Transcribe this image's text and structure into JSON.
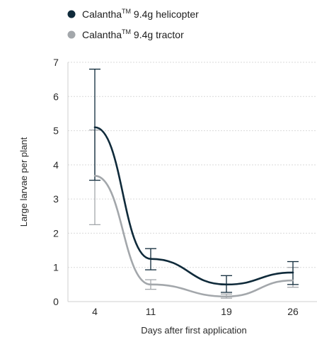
{
  "chart_data": {
    "type": "line",
    "xlabel": "Days after first application",
    "ylabel": "Large larvae per plant",
    "x": [
      4,
      11,
      19,
      26
    ],
    "x_tick_labels": [
      "4",
      "11",
      "19",
      "26"
    ],
    "y_ticks": [
      0,
      1,
      2,
      3,
      4,
      5,
      6,
      7
    ],
    "y_tick_labels": [
      "0",
      "1",
      "2",
      "3",
      "4",
      "5",
      "6",
      "7"
    ],
    "ylim": [
      0,
      7
    ],
    "grid": "horizontal",
    "legend_position": "top-left",
    "series": [
      {
        "name": "Calantha™ 9.4g helicopter",
        "name_main": "Calantha",
        "name_mark": "TM",
        "name_rest": " 9.4g helicopter",
        "color": "#0f2a3a",
        "values": [
          5.1,
          1.25,
          0.5,
          0.85
        ],
        "error_low": [
          3.55,
          0.93,
          0.27,
          0.5
        ],
        "error_high": [
          6.8,
          1.55,
          0.76,
          1.17
        ]
      },
      {
        "name": "Calantha™ 9.4g tractor",
        "name_main": "Calantha",
        "name_mark": "TM",
        "name_rest": " 9.4g tractor",
        "color": "#a3a7ab",
        "values": [
          3.68,
          0.5,
          0.15,
          0.62
        ],
        "error_low": [
          2.25,
          0.36,
          0.1,
          0.42
        ],
        "error_high": [
          5.02,
          0.64,
          0.22,
          1.0
        ]
      }
    ]
  }
}
